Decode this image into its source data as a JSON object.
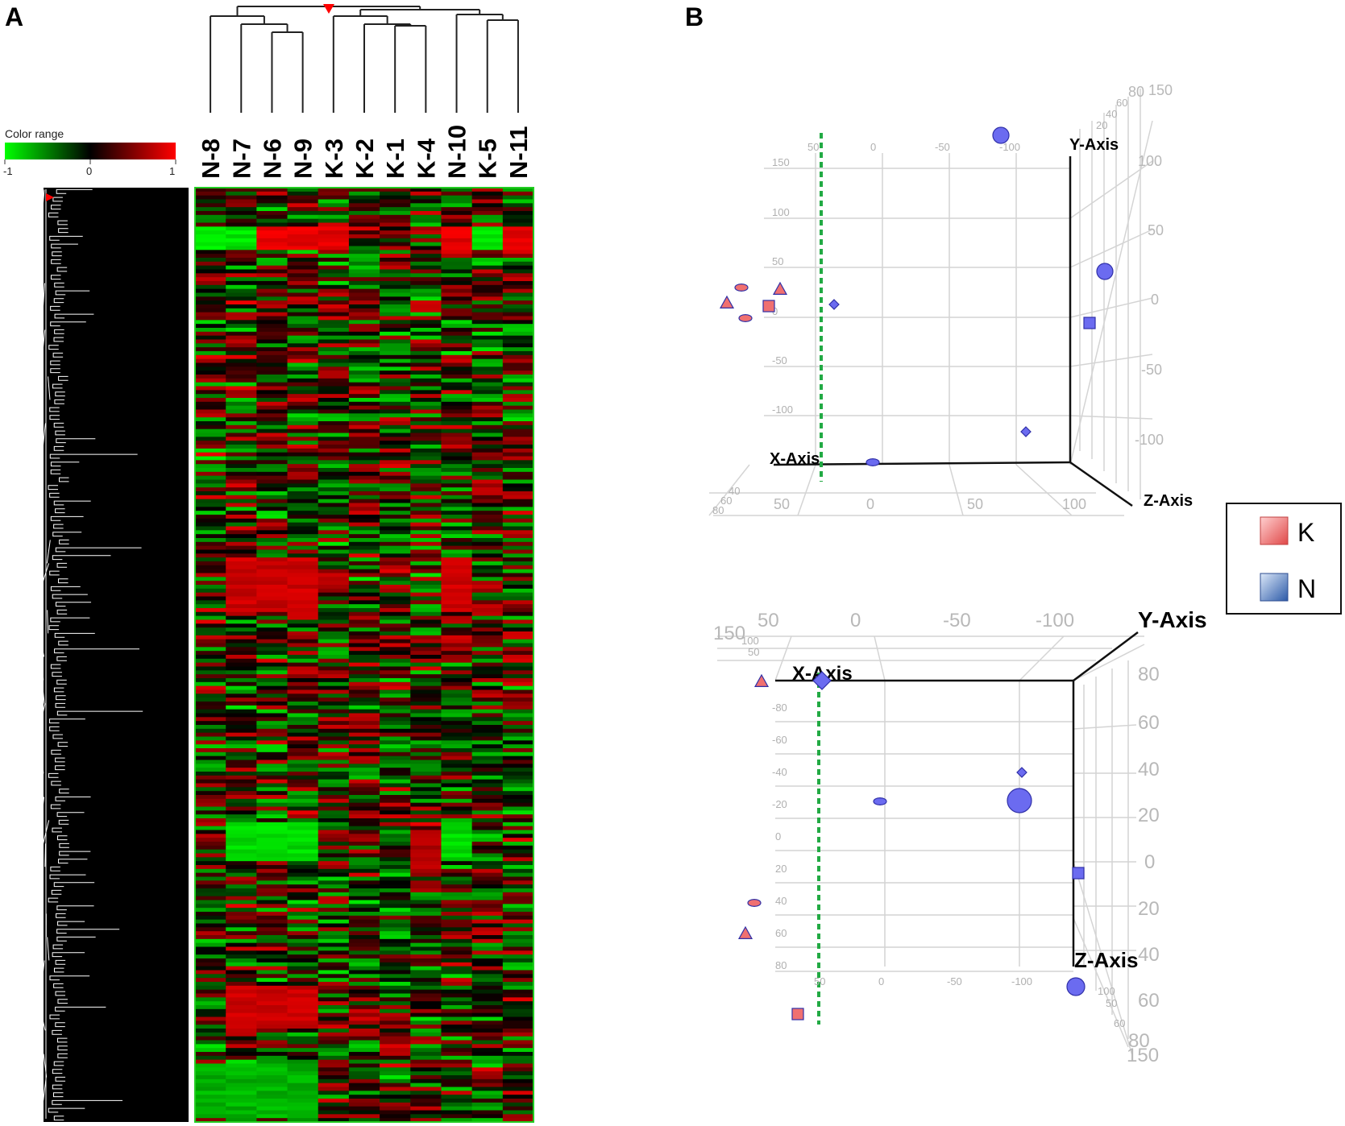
{
  "panels": {
    "A": {
      "label": "A"
    },
    "B": {
      "label": "B"
    }
  },
  "chart_data": [
    {
      "type": "heatmap",
      "samples": [
        "N-8",
        "N-7",
        "N-6",
        "N-9",
        "K-3",
        "K-2",
        "K-1",
        "K-4",
        "N-10",
        "K-5",
        "N-11"
      ],
      "color_scale": {
        "title": "Color range",
        "ticks": [
          "-1",
          "0",
          "1"
        ],
        "min": -1,
        "mid": 0,
        "max": 1,
        "colors": {
          "min": "#00ff00",
          "mid": "#000000",
          "max": "#ff0000"
        }
      },
      "row_count": 240,
      "row_dendrogram": true,
      "column_dendrogram": {
        "leaf_order": [
          "N-8",
          "N-7",
          "N-6",
          "N-9",
          "K-3",
          "K-2",
          "K-1",
          "K-4",
          "N-10",
          "K-5",
          "N-11"
        ],
        "merges": [
          [
            "N-6",
            "N-9"
          ],
          [
            "N-7",
            "N-6+N-9"
          ],
          [
            "N-8",
            "N-7+N-6+N-9"
          ],
          [
            "K-1",
            "K-4"
          ],
          [
            "K-2",
            "K-1+K-4"
          ],
          [
            "K-5",
            "N-11"
          ],
          [
            "N-10",
            "K-5+N-11"
          ],
          [
            "K-3",
            "K-2+K-1+K-4"
          ],
          [
            "K-3+K-2+K-1+K-4",
            "N-10+K-5+N-11"
          ],
          [
            "N-8+N-7+N-6+N-9",
            "rest"
          ]
        ]
      },
      "high_expression_bands": [
        {
          "rows": "top block",
          "samples": [
            "N-6",
            "N-9",
            "K-3",
            "N-10",
            "N-11"
          ]
        },
        {
          "rows": "middle block",
          "samples": [
            "N-7",
            "N-6",
            "N-9",
            "N-10"
          ]
        },
        {
          "rows": "bottom block",
          "samples": [
            "N-7",
            "N-6",
            "N-9"
          ]
        }
      ]
    },
    {
      "type": "scatter",
      "projection": "3d",
      "view": "top",
      "axes": {
        "x": {
          "label": "X-Axis",
          "ticks": [
            "50",
            "0",
            "50",
            "100"
          ]
        },
        "y": {
          "label": "Y-Axis",
          "ticks": [
            "100",
            "50",
            "0",
            "-50",
            "-100"
          ]
        },
        "z": {
          "label": "Z-Axis",
          "ticks": [
            "150",
            "100",
            "50",
            "0",
            "-50",
            "-100"
          ]
        },
        "back_ticks": [
          "50",
          "0",
          "-50",
          "-100"
        ],
        "side_ticks": [
          "80",
          "60",
          "40",
          "20",
          "0",
          "150"
        ],
        "corner_ticks": [
          "80",
          "60",
          "40",
          "20"
        ]
      },
      "series": [
        {
          "name": "K",
          "color": "#e84a4a",
          "points": [
            {
              "shape": "triangle",
              "y": 60,
              "z": 20
            },
            {
              "shape": "ellipse",
              "y": 50,
              "z": 30
            },
            {
              "shape": "triangle",
              "y": 40,
              "z": 0
            },
            {
              "shape": "square",
              "y": 40,
              "z": 0
            },
            {
              "shape": "ellipse",
              "y": 20,
              "z": -10
            }
          ]
        },
        {
          "name": "N",
          "color": "#5b5be8",
          "points": [
            {
              "shape": "sphere",
              "y": 160,
              "z": -90
            },
            {
              "shape": "sphere",
              "y": 30,
              "z": -120
            },
            {
              "shape": "diamond",
              "y": 0,
              "z": 0
            },
            {
              "shape": "square",
              "y": -20,
              "z": -110
            },
            {
              "shape": "diamond",
              "y": -130,
              "z": -80
            },
            {
              "shape": "ellipse",
              "y": -160,
              "z": 0
            }
          ]
        }
      ]
    },
    {
      "type": "scatter",
      "projection": "3d",
      "view": "side",
      "axes": {
        "x": {
          "label": "X-Axis",
          "ticks": [
            "-80",
            "-60",
            "-40",
            "-20",
            "0",
            "20",
            "40",
            "60",
            "80"
          ]
        },
        "y": {
          "label": "Y-Axis",
          "ticks": [
            "50",
            "0",
            "-50",
            "-100"
          ]
        },
        "z": {
          "label": "Z-Axis",
          "ticks": [
            "80",
            "60",
            "40",
            "20",
            "0",
            "20",
            "40",
            "60",
            "80"
          ]
        },
        "corner_ticks": [
          "150",
          "100",
          "50"
        ],
        "bottom_ticks": [
          "50",
          "0",
          "-50",
          "-100"
        ],
        "foot_ticks": [
          "100",
          "50",
          "60",
          "80",
          "150"
        ]
      },
      "series": [
        {
          "name": "K",
          "color": "#e84a4a",
          "points": [
            {
              "shape": "triangle",
              "x": -90,
              "z": 80
            },
            {
              "shape": "ellipse",
              "x": 40,
              "z": 40
            },
            {
              "shape": "triangle",
              "x": 60,
              "z": 60
            },
            {
              "shape": "square",
              "x": 110,
              "z": 30
            }
          ]
        },
        {
          "name": "N",
          "color": "#5b5be8",
          "points": [
            {
              "shape": "diamond",
              "x": -90,
              "z": 45
            },
            {
              "shape": "diamond",
              "x": -40,
              "z": -100
            },
            {
              "shape": "ellipse",
              "x": -20,
              "z": 0
            },
            {
              "shape": "sphere",
              "x": -20,
              "z": -100
            },
            {
              "shape": "square",
              "x": 20,
              "z": -130
            },
            {
              "shape": "sphere",
              "x": 80,
              "z": -130
            }
          ]
        }
      ]
    }
  ],
  "legend": {
    "items": [
      {
        "label": "K",
        "color": "#f08080"
      },
      {
        "label": "N",
        "color": "#6b8fcf"
      }
    ]
  }
}
